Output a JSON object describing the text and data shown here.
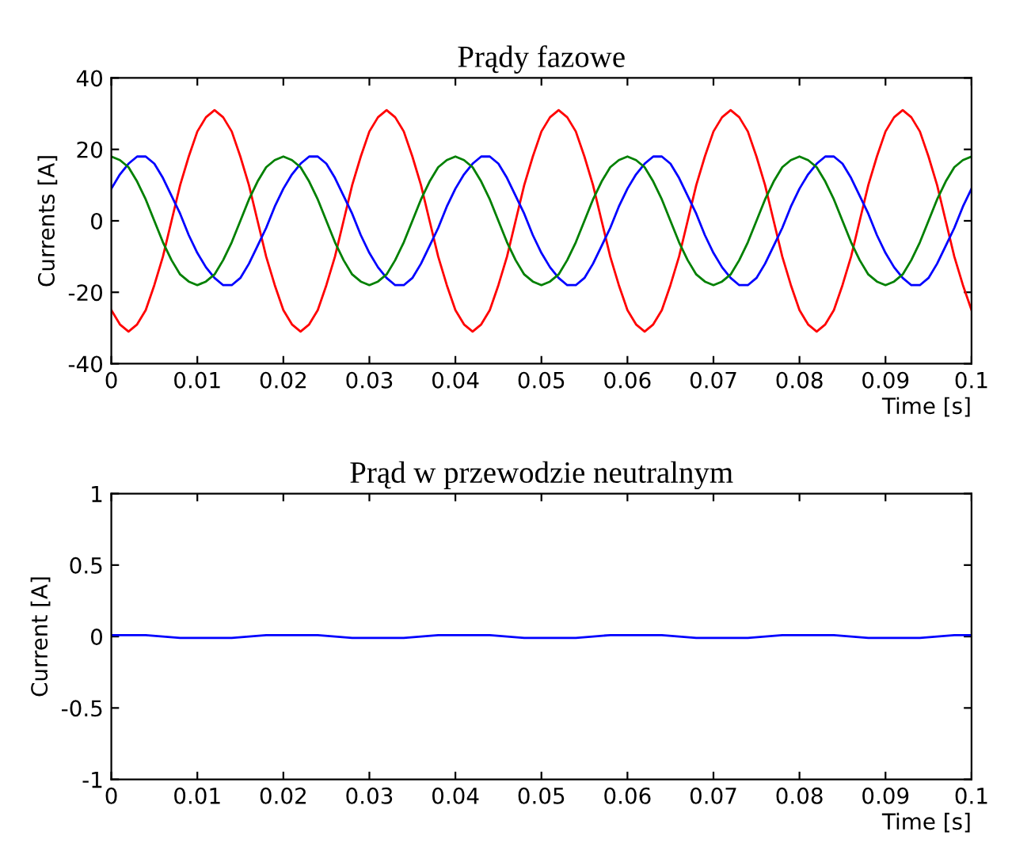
{
  "chart_data": [
    {
      "type": "line",
      "title": "Prądy fazowe",
      "xlabel": "Time [s]",
      "ylabel": "Currents [A]",
      "x": [
        0,
        0.001,
        0.002,
        0.003,
        0.004,
        0.005,
        0.006,
        0.007,
        0.008,
        0.009,
        0.01,
        0.011,
        0.012,
        0.013,
        0.014,
        0.015,
        0.016,
        0.017,
        0.018,
        0.019,
        0.02,
        0.021,
        0.022,
        0.023,
        0.024,
        0.025,
        0.026,
        0.027,
        0.028,
        0.029,
        0.03,
        0.031,
        0.032,
        0.033,
        0.034,
        0.035,
        0.036,
        0.037,
        0.038,
        0.039,
        0.04,
        0.041,
        0.042,
        0.043,
        0.044,
        0.045,
        0.046,
        0.047,
        0.048,
        0.049,
        0.05,
        0.051,
        0.052,
        0.053,
        0.054,
        0.055,
        0.056,
        0.057,
        0.058,
        0.059,
        0.06,
        0.061,
        0.062,
        0.063,
        0.064,
        0.065,
        0.066,
        0.067,
        0.068,
        0.069,
        0.07,
        0.071,
        0.072,
        0.073,
        0.074,
        0.075,
        0.076,
        0.077,
        0.078,
        0.079,
        0.08,
        0.081,
        0.082,
        0.083,
        0.084,
        0.085,
        0.086,
        0.087,
        0.088,
        0.089,
        0.09,
        0.091,
        0.092,
        0.093,
        0.094,
        0.095,
        0.096,
        0.097,
        0.098,
        0.099,
        0.1
      ],
      "series": [
        {
          "color": "#ff0000",
          "values": [
            -25,
            -29,
            -31,
            -29,
            -25,
            -18,
            -10,
            0,
            10,
            18,
            25,
            29,
            31,
            29,
            25,
            18,
            10,
            0,
            -10,
            -18,
            -25,
            -29,
            -31,
            -29,
            -25,
            -18,
            -10,
            0,
            10,
            18,
            25,
            29,
            31,
            29,
            25,
            18,
            10,
            0,
            -10,
            -18,
            -25,
            -29,
            -31,
            -29,
            -25,
            -18,
            -10,
            0,
            10,
            18,
            25,
            29,
            31,
            29,
            25,
            18,
            10,
            0,
            -10,
            -18,
            -25,
            -29,
            -31,
            -29,
            -25,
            -18,
            -10,
            0,
            10,
            18,
            25,
            29,
            31,
            29,
            25,
            18,
            10,
            0,
            -10,
            -18,
            -25,
            -29,
            -31,
            -29,
            -25,
            -18,
            -10,
            0,
            10,
            18,
            25,
            29,
            31,
            29,
            25,
            18,
            10,
            0,
            -10,
            -18,
            -25
          ]
        },
        {
          "color": "#0000ff",
          "values": [
            9,
            13,
            16,
            18,
            18,
            16,
            12,
            7,
            2,
            -4,
            -9,
            -13,
            -16,
            -18,
            -18,
            -16,
            -12,
            -7,
            -2,
            4,
            9,
            13,
            16,
            18,
            18,
            16,
            12,
            7,
            2,
            -4,
            -9,
            -13,
            -16,
            -18,
            -18,
            -16,
            -12,
            -7,
            -2,
            4,
            9,
            13,
            16,
            18,
            18,
            16,
            12,
            7,
            2,
            -4,
            -9,
            -13,
            -16,
            -18,
            -18,
            -16,
            -12,
            -7,
            -2,
            4,
            9,
            13,
            16,
            18,
            18,
            16,
            12,
            7,
            2,
            -4,
            -9,
            -13,
            -16,
            -18,
            -18,
            -16,
            -12,
            -7,
            -2,
            4,
            9,
            13,
            16,
            18,
            18,
            16,
            12,
            7,
            2,
            -4,
            -9,
            -13,
            -16,
            -18,
            -18,
            -16,
            -12,
            -7,
            -2,
            4,
            9
          ]
        },
        {
          "color": "#008000",
          "values": [
            18,
            17,
            15,
            11,
            6,
            0,
            -6,
            -11,
            -15,
            -17,
            -18,
            -17,
            -15,
            -11,
            -6,
            0,
            6,
            11,
            15,
            17,
            18,
            17,
            15,
            11,
            6,
            0,
            -6,
            -11,
            -15,
            -17,
            -18,
            -17,
            -15,
            -11,
            -6,
            0,
            6,
            11,
            15,
            17,
            18,
            17,
            15,
            11,
            6,
            0,
            -6,
            -11,
            -15,
            -17,
            -18,
            -17,
            -15,
            -11,
            -6,
            0,
            6,
            11,
            15,
            17,
            18,
            17,
            15,
            11,
            6,
            0,
            -6,
            -11,
            -15,
            -17,
            -18,
            -17,
            -15,
            -11,
            -6,
            0,
            6,
            11,
            15,
            17,
            18,
            17,
            15,
            11,
            6,
            0,
            -6,
            -11,
            -15,
            -17,
            -18,
            -17,
            -15,
            -11,
            -6,
            0,
            6,
            11,
            15,
            17,
            18
          ]
        }
      ],
      "xlim": [
        0,
        0.1
      ],
      "xticks": [
        0,
        0.01,
        0.02,
        0.03,
        0.04,
        0.05,
        0.06,
        0.07,
        0.08,
        0.09,
        0.1
      ],
      "ylim": [
        -40,
        40
      ],
      "yticks": [
        -40,
        -20,
        0,
        20,
        40
      ],
      "grid": false,
      "legend": false
    },
    {
      "type": "line",
      "title": "Prąd w przewodzie neutralnym",
      "xlabel": "Time [s]",
      "ylabel": "Current [A]",
      "x": [
        0,
        0.002,
        0.004,
        0.006,
        0.008,
        0.01,
        0.012,
        0.014,
        0.016,
        0.018,
        0.02,
        0.022,
        0.024,
        0.026,
        0.028,
        0.03,
        0.032,
        0.034,
        0.036,
        0.038,
        0.04,
        0.042,
        0.044,
        0.046,
        0.048,
        0.05,
        0.052,
        0.054,
        0.056,
        0.058,
        0.06,
        0.062,
        0.064,
        0.066,
        0.068,
        0.07,
        0.072,
        0.074,
        0.076,
        0.078,
        0.08,
        0.082,
        0.084,
        0.086,
        0.088,
        0.09,
        0.092,
        0.094,
        0.096,
        0.098,
        0.1
      ],
      "series": [
        {
          "color": "#0000ff",
          "values": [
            0.01,
            0.01,
            0.01,
            0,
            -0.01,
            -0.01,
            -0.01,
            -0.01,
            0,
            0.01,
            0.01,
            0.01,
            0.01,
            0,
            -0.01,
            -0.01,
            -0.01,
            -0.01,
            0,
            0.01,
            0.01,
            0.01,
            0.01,
            0,
            -0.01,
            -0.01,
            -0.01,
            -0.01,
            0,
            0.01,
            0.01,
            0.01,
            0.01,
            0,
            -0.01,
            -0.01,
            -0.01,
            -0.01,
            0,
            0.01,
            0.01,
            0.01,
            0.01,
            0,
            -0.01,
            -0.01,
            -0.01,
            -0.01,
            0,
            0.01,
            0.01
          ]
        }
      ],
      "xlim": [
        0,
        0.1
      ],
      "xticks": [
        0,
        0.01,
        0.02,
        0.03,
        0.04,
        0.05,
        0.06,
        0.07,
        0.08,
        0.09,
        0.1
      ],
      "ylim": [
        -1,
        1
      ],
      "yticks": [
        -1,
        -0.5,
        0,
        0.5,
        1
      ],
      "grid": false,
      "legend": false
    }
  ]
}
